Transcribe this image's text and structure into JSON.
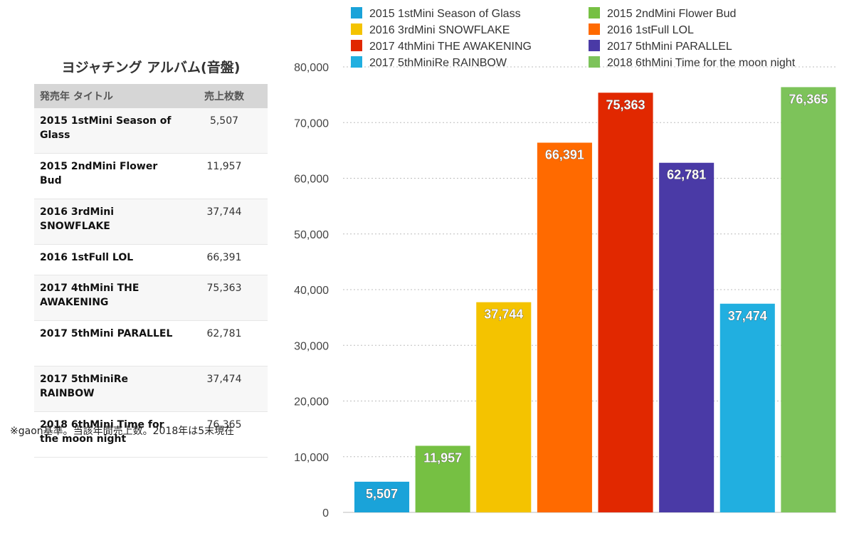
{
  "table": {
    "title": "ヨジャチング アルバム(音盤)",
    "header_title": "発売年 タイトル",
    "header_sales": "売上枚数",
    "rows": [
      {
        "title": "2015 1stMini Season of Glass",
        "sales": "5,507"
      },
      {
        "title": "2015 2ndMini Flower Bud",
        "sales": "11,957"
      },
      {
        "title": "2016 3rdMini SNOWFLAKE",
        "sales": "37,744"
      },
      {
        "title": "2016 1stFull LOL",
        "sales": "66,391"
      },
      {
        "title": "2017 4thMini THE AWAKENING",
        "sales": "75,363"
      },
      {
        "title": "2017 5thMini PARALLEL",
        "sales": "62,781"
      },
      {
        "title": "2017 5thMiniRe RAINBOW",
        "sales": "37,474"
      },
      {
        "title": "2018 6thMini Time for the moon night",
        "sales": "76,365"
      }
    ],
    "note": "※gaon基準。当該年間売上数。2018年は5末現在"
  },
  "chart_data": {
    "type": "bar",
    "title": "",
    "xlabel": "",
    "ylabel": "",
    "ylim": [
      0,
      80000
    ],
    "yticks": [
      "0",
      "10,000",
      "20,000",
      "30,000",
      "40,000",
      "50,000",
      "60,000",
      "70,000",
      "80,000"
    ],
    "ytick_values": [
      0,
      10000,
      20000,
      30000,
      40000,
      50000,
      60000,
      70000,
      80000
    ],
    "grid": true,
    "legend_position": "top",
    "series": [
      {
        "name": "2015 1stMini Season of Glass",
        "value": 5507,
        "label": "5,507",
        "color": "#1aa3d9"
      },
      {
        "name": "2015 2ndMini Flower Bud",
        "value": 11957,
        "label": "11,957",
        "color": "#76c043"
      },
      {
        "name": "2016 3rdMini SNOWFLAKE",
        "value": 37744,
        "label": "37,744",
        "color": "#f4c300"
      },
      {
        "name": "2016 1stFull LOL",
        "value": 66391,
        "label": "66,391",
        "color": "#ff6a00"
      },
      {
        "name": "2017 4thMini THE AWAKENING",
        "value": 75363,
        "label": "75,363",
        "color": "#e12800"
      },
      {
        "name": "2017 5thMini PARALLEL",
        "value": 62781,
        "label": "62,781",
        "color": "#4a3aa6"
      },
      {
        "name": "2017 5thMiniRe RAINBOW",
        "value": 37474,
        "label": "37,474",
        "color": "#21afe0"
      },
      {
        "name": "2018 6thMini Time for the moon night",
        "value": 76365,
        "label": "76,365",
        "color": "#7dc35a"
      }
    ]
  }
}
